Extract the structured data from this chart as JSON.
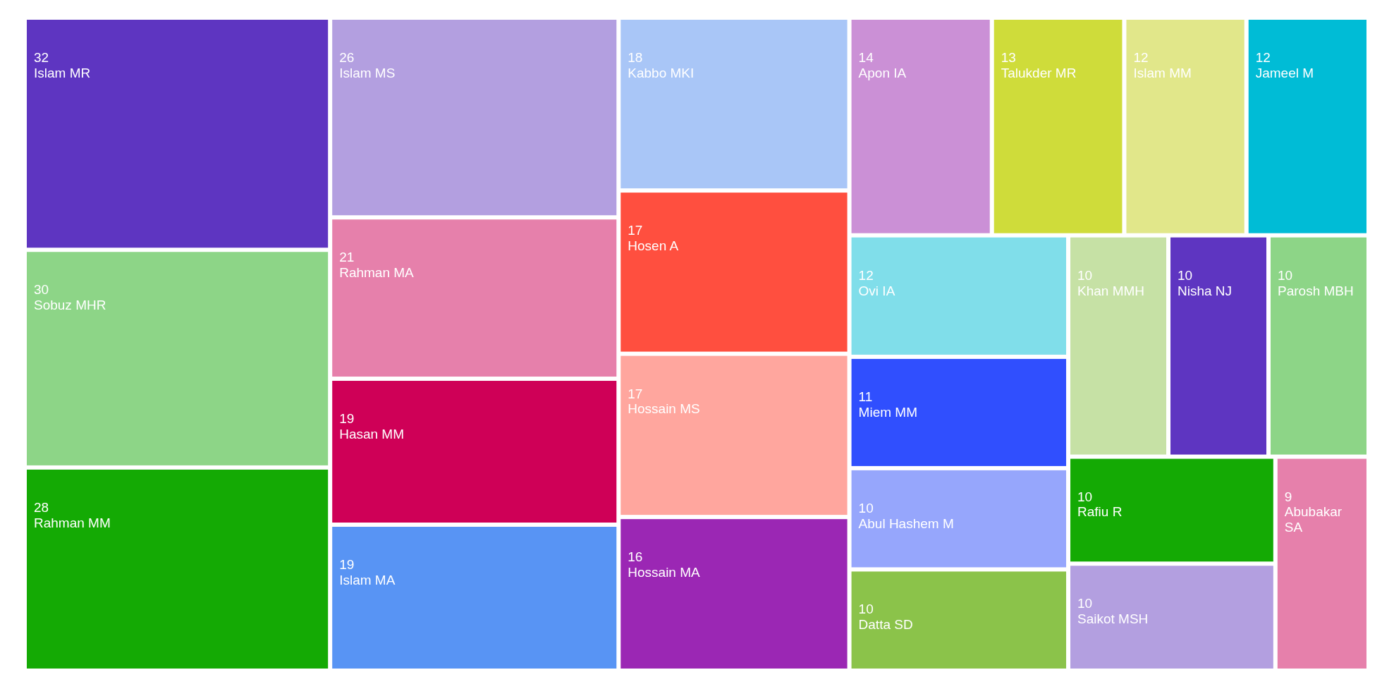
{
  "chart_data": {
    "type": "other",
    "categories": [
      "Islam MR",
      "Sobuz MHR",
      "Rahman MM",
      "Islam MS",
      "Rahman MA",
      "Hasan MM",
      "Islam MA",
      "Kabbo MKI",
      "Hosen A",
      "Hossain MS",
      "Hossain MA",
      "Apon IA",
      "Talukder MR",
      "Islam MM",
      "Jameel M",
      "Ovi IA",
      "Miem MM",
      "Abul Hashem M",
      "Datta SD",
      "Khan MMH",
      "Nisha NJ",
      "Parosh MBH",
      "Rafiu R",
      "Saikot MSH",
      "Abubakar SA"
    ],
    "values": [
      32,
      30,
      28,
      26,
      21,
      19,
      19,
      18,
      17,
      17,
      16,
      14,
      13,
      12,
      12,
      12,
      11,
      10,
      10,
      10,
      10,
      10,
      10,
      10,
      9
    ],
    "colors": [
      "#5e35c1",
      "#8dd587",
      "#14aa04",
      "#b39fe0",
      "#e680ab",
      "#cf0057",
      "#5894f4",
      "#a9c6f7",
      "#ff4f3f",
      "#ffa69e",
      "#9b27b4",
      "#cb90d6",
      "#cfdc3a",
      "#e1e78a",
      "#00bcd6",
      "#80deea",
      "#304ffe",
      "#96a6fc",
      "#8bc34a",
      "#c6e1a5",
      "#5e35c1",
      "#8dd587",
      "#14aa04",
      "#b39fe0",
      "#e680ab"
    ],
    "data_labels": true
  }
}
